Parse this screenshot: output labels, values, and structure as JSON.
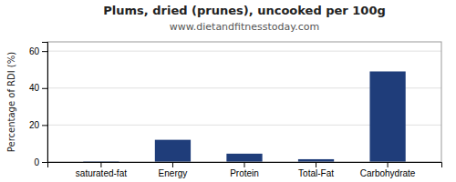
{
  "chart_data": {
    "type": "bar",
    "title": "Plums, dried (prunes), uncooked per 100g",
    "subtitle": "www.dietandfitnesstoday.com",
    "categories": [
      "saturated-fat",
      "Energy",
      "Protein",
      "Total-Fat",
      "Carbohydrate"
    ],
    "values": [
      0.3,
      12,
      4.5,
      1.5,
      49
    ],
    "color": "#1f3d7a",
    "ylabel": "Percentage of RDI (%)",
    "ylim": [
      0,
      65
    ],
    "yticks": [
      0,
      20,
      40,
      60
    ],
    "grid": true
  }
}
